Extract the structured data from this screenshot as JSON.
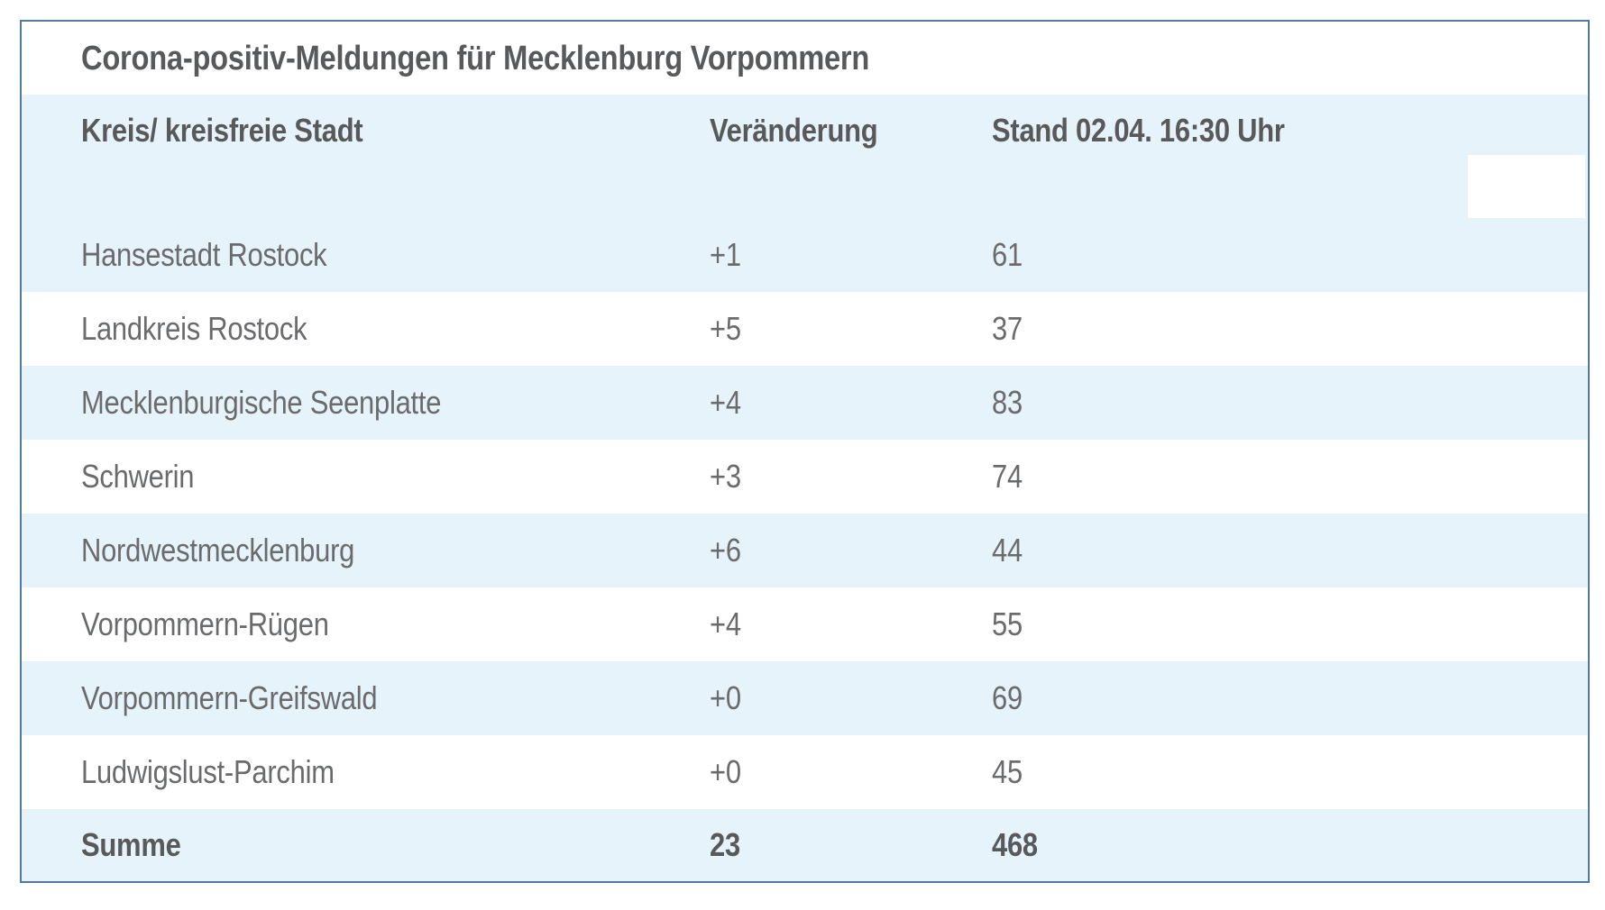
{
  "table": {
    "title": "Corona-positiv-Meldungen für Mecklenburg Vorpommern",
    "headers": {
      "kreis": "Kreis/ kreisfreie Stadt",
      "veraenderung": "Veränderung",
      "stand": "Stand 02.04. 16:30 Uhr"
    },
    "rows": [
      {
        "kreis": "Hansestadt Rostock",
        "veraenderung": "+1",
        "stand": "61"
      },
      {
        "kreis": "Landkreis Rostock",
        "veraenderung": "+5",
        "stand": "37"
      },
      {
        "kreis": "Mecklenburgische Seenplatte",
        "veraenderung": "+4",
        "stand": "83"
      },
      {
        "kreis": "Schwerin",
        "veraenderung": "+3",
        "stand": "74"
      },
      {
        "kreis": "Nordwestmecklenburg",
        "veraenderung": "+6",
        "stand": "44"
      },
      {
        "kreis": "Vorpommern-Rügen",
        "veraenderung": "+4",
        "stand": "55"
      },
      {
        "kreis": "Vorpommern-Greifswald",
        "veraenderung": "+0",
        "stand": "69"
      },
      {
        "kreis": "Ludwigslust-Parchim",
        "veraenderung": "+0",
        "stand": "45"
      }
    ],
    "summary": {
      "kreis": "Summe",
      "veraenderung": "23",
      "stand": "468"
    }
  },
  "colors": {
    "row_highlight": "#e7f3fa",
    "table_border": "#4e7b9e",
    "heading_text": "#58595b",
    "body_text": "#6a6b6d"
  },
  "chart_data": {
    "type": "table",
    "title": "Corona-positiv-Meldungen für Mecklenburg Vorpommern",
    "columns": [
      "Kreis/ kreisfreie Stadt",
      "Veränderung",
      "Stand 02.04. 16:30 Uhr"
    ],
    "rows": [
      [
        "Hansestadt Rostock",
        "+1",
        61
      ],
      [
        "Landkreis Rostock",
        "+5",
        37
      ],
      [
        "Mecklenburgische Seenplatte",
        "+4",
        83
      ],
      [
        "Schwerin",
        "+3",
        74
      ],
      [
        "Nordwestmecklenburg",
        "+6",
        44
      ],
      [
        "Vorpommern-Rügen",
        "+4",
        55
      ],
      [
        "Vorpommern-Greifswald",
        "+0",
        69
      ],
      [
        "Ludwigslust-Parchim",
        "+0",
        45
      ],
      [
        "Summe",
        23,
        468
      ]
    ]
  }
}
